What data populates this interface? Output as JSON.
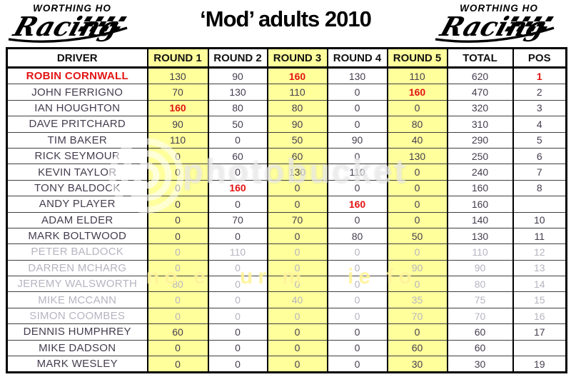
{
  "title": "‘Mod’ adults 2010",
  "logo": {
    "top": "WORTHING HO",
    "script": "Racing"
  },
  "watermark": {
    "wordmark": "photobucket",
    "fragments": [
      "no e",
      "ur m",
      "ie fo"
    ]
  },
  "colors": {
    "highlight_yellow": "#FFFF9C",
    "alert_red": "#E31414",
    "text_dark": "#443D4E",
    "text_inactive": "#B6B4C0"
  },
  "table": {
    "headers": [
      "DRIVER",
      "ROUND 1",
      "ROUND 2",
      "ROUND 3",
      "ROUND 4",
      "ROUND 5",
      "TOTAL",
      "POS"
    ],
    "highlighted_score_columns": [
      0,
      2,
      4
    ],
    "rows": [
      {
        "driver": "ROBIN CORNWALL",
        "scores": [
          "130",
          "90",
          "160",
          "130",
          "110"
        ],
        "total": "620",
        "pos": "1",
        "driver_red": true,
        "red_scores": [
          2
        ],
        "pos_red": true
      },
      {
        "driver": "JOHN FERRIGNO",
        "scores": [
          "70",
          "130",
          "110",
          "0",
          "160"
        ],
        "total": "470",
        "pos": "2",
        "red_scores": [
          4
        ]
      },
      {
        "driver": "IAN HOUGHTON",
        "scores": [
          "160",
          "80",
          "80",
          "0",
          "0"
        ],
        "total": "320",
        "pos": "3",
        "red_scores": [
          0
        ]
      },
      {
        "driver": "DAVE PRITCHARD",
        "scores": [
          "90",
          "50",
          "90",
          "0",
          "80"
        ],
        "total": "310",
        "pos": "4"
      },
      {
        "driver": "TIM BAKER",
        "scores": [
          "110",
          "0",
          "50",
          "90",
          "40"
        ],
        "total": "290",
        "pos": "5"
      },
      {
        "driver": "RICK SEYMOUR",
        "scores": [
          "0",
          "60",
          "60",
          "0",
          "130"
        ],
        "total": "250",
        "pos": "6"
      },
      {
        "driver": "KEVIN TAYLOR",
        "scores": [
          "0",
          "0",
          "130",
          "110",
          "0"
        ],
        "total": "240",
        "pos": "7"
      },
      {
        "driver": "TONY BALDOCK",
        "scores": [
          "0",
          "160",
          "0",
          "0",
          "0"
        ],
        "total": "160",
        "pos": "8",
        "red_scores": [
          1
        ]
      },
      {
        "driver": "ANDY PLAYER",
        "scores": [
          "0",
          "0",
          "0",
          "160",
          "0"
        ],
        "total": "160",
        "pos": "",
        "red_scores": [
          3
        ]
      },
      {
        "driver": "ADAM ELDER",
        "scores": [
          "0",
          "70",
          "70",
          "0",
          "0"
        ],
        "total": "140",
        "pos": "10"
      },
      {
        "driver": "MARK BOLTWOOD",
        "scores": [
          "0",
          "0",
          "0",
          "80",
          "50"
        ],
        "total": "130",
        "pos": "11"
      },
      {
        "driver": "PETER BALDOCK",
        "scores": [
          "0",
          "110",
          "0",
          "0",
          "0"
        ],
        "total": "110",
        "pos": "12",
        "grey": true
      },
      {
        "driver": "DARREN MCHARG",
        "scores": [
          "0",
          "0",
          "0",
          "0",
          "90"
        ],
        "total": "90",
        "pos": "13",
        "grey": true
      },
      {
        "driver": "JEREMY WALSWORTH",
        "scores": [
          "80",
          "0",
          "0",
          "0",
          "0"
        ],
        "total": "80",
        "pos": "14",
        "grey": true
      },
      {
        "driver": "MIKE MCCANN",
        "scores": [
          "0",
          "0",
          "40",
          "0",
          "35"
        ],
        "total": "75",
        "pos": "15",
        "grey": true
      },
      {
        "driver": "SIMON COOMBES",
        "scores": [
          "0",
          "0",
          "0",
          "0",
          "70"
        ],
        "total": "70",
        "pos": "16",
        "grey": true
      },
      {
        "driver": "DENNIS HUMPHREY",
        "scores": [
          "60",
          "0",
          "0",
          "0",
          "0"
        ],
        "total": "60",
        "pos": "17"
      },
      {
        "driver": "MIKE DADSON",
        "scores": [
          "0",
          "0",
          "0",
          "0",
          "60"
        ],
        "total": "60",
        "pos": ""
      },
      {
        "driver": "MARK WESLEY",
        "scores": [
          "0",
          "0",
          "0",
          "0",
          "30"
        ],
        "total": "30",
        "pos": "19"
      }
    ]
  }
}
